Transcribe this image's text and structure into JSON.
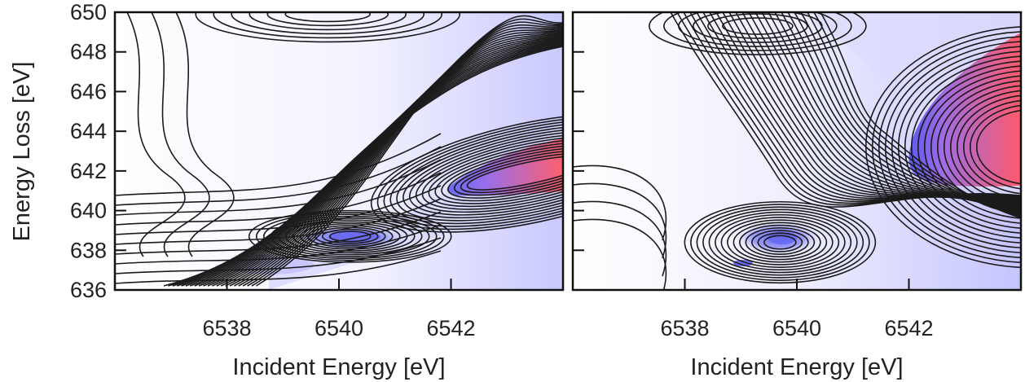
{
  "chart_data": [
    {
      "type": "heatmap",
      "panel": "left",
      "title": "",
      "xlabel": "Incident Energy [eV]",
      "ylabel": "Energy Loss [eV]",
      "xlim": [
        6536.0,
        6544.0
      ],
      "ylim": [
        636,
        650
      ],
      "xticks": [
        6538,
        6540,
        6542
      ],
      "yticks": [
        636,
        638,
        640,
        642,
        644,
        646,
        648,
        650
      ],
      "colorscale": [
        "#ffffff",
        "#c8c8ff",
        "#6a6af4",
        "#ff5a6a"
      ],
      "contour_lines": true,
      "features": [
        {
          "x": 6543.2,
          "y": 642.2,
          "intensity": 1.0
        },
        {
          "x": 6540.3,
          "y": 638.8,
          "intensity": 0.45
        },
        {
          "x": 6538.8,
          "y": 637.2,
          "intensity": 0.25
        },
        {
          "x": 6539.8,
          "y": 649.8,
          "intensity": 0.12
        }
      ]
    },
    {
      "type": "heatmap",
      "panel": "right",
      "title": "",
      "xlabel": "Incident Energy [eV]",
      "ylabel": "",
      "xlim": [
        6536.0,
        6544.0
      ],
      "ylim": [
        636,
        650
      ],
      "xticks": [
        6538,
        6540,
        6542
      ],
      "yticks": [
        636,
        638,
        640,
        642,
        644,
        646,
        648,
        650
      ],
      "colorscale": [
        "#ffffff",
        "#c8c8ff",
        "#6a6af4",
        "#ff5a6a"
      ],
      "contour_lines": true,
      "features": [
        {
          "x": 6543.5,
          "y": 643.0,
          "intensity": 1.0
        },
        {
          "x": 6539.8,
          "y": 638.8,
          "intensity": 0.45
        },
        {
          "x": 6539.0,
          "y": 637.3,
          "intensity": 0.35
        },
        {
          "x": 6539.3,
          "y": 649.2,
          "intensity": 0.12
        }
      ]
    }
  ]
}
